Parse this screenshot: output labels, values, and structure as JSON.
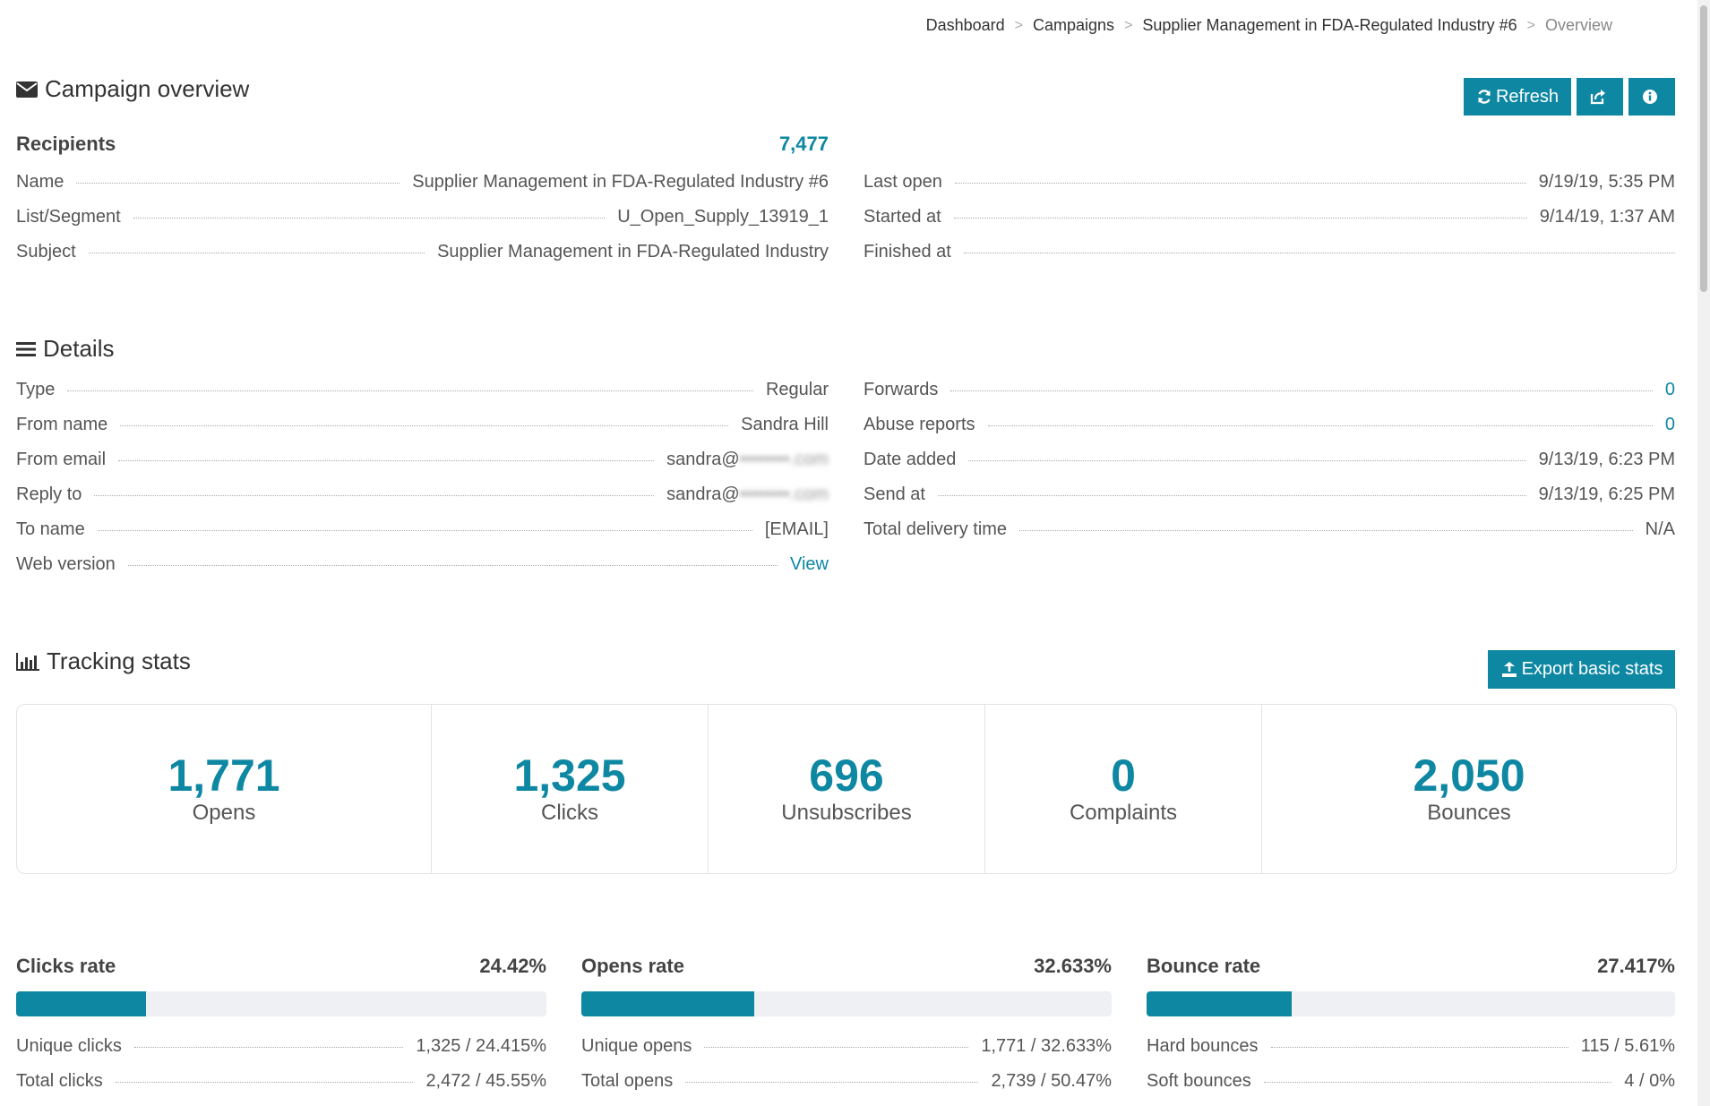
{
  "breadcrumb": [
    "Dashboard",
    "Campaigns",
    "Supplier Management in FDA-Regulated Industry #6",
    "Overview"
  ],
  "overview": {
    "title": "Campaign overview",
    "refresh_label": "Refresh",
    "recipients_label": "Recipients",
    "recipients_value": "7,477",
    "left": [
      {
        "label": "Name",
        "value": "Supplier Management in FDA-Regulated Industry #6"
      },
      {
        "label": "List/Segment",
        "value": "U_Open_Supply_13919_1"
      },
      {
        "label": "Subject",
        "value": "Supplier Management in FDA-Regulated Industry"
      }
    ],
    "right": [
      {
        "label": "Last open",
        "value": "9/19/19, 5:35 PM"
      },
      {
        "label": "Started at",
        "value": "9/14/19, 1:37 AM"
      },
      {
        "label": "Finished at",
        "value": ""
      }
    ]
  },
  "details": {
    "title": "Details",
    "left": [
      {
        "label": "Type",
        "value": "Regular"
      },
      {
        "label": "From name",
        "value": "Sandra Hill"
      },
      {
        "label": "From email",
        "value": "sandra@",
        "blurred": "••••••••.com"
      },
      {
        "label": "Reply to",
        "value": "sandra@",
        "blurred": "••••••••.com"
      },
      {
        "label": "To name",
        "value": "[EMAIL]"
      },
      {
        "label": "Web version",
        "value": "View"
      }
    ],
    "right": [
      {
        "label": "Forwards",
        "value": "0"
      },
      {
        "label": "Abuse reports",
        "value": "0"
      },
      {
        "label": "Date added",
        "value": "9/13/19, 6:23 PM"
      },
      {
        "label": "Send at",
        "value": "9/13/19, 6:25 PM"
      },
      {
        "label": "Total delivery time",
        "value": "N/A"
      }
    ]
  },
  "tracking": {
    "title": "Tracking stats",
    "export_label": "Export basic stats",
    "stats": [
      {
        "num": "1,771",
        "label": "Opens"
      },
      {
        "num": "1,325",
        "label": "Clicks"
      },
      {
        "num": "696",
        "label": "Unsubscribes"
      },
      {
        "num": "0",
        "label": "Complaints"
      },
      {
        "num": "2,050",
        "label": "Bounces"
      }
    ]
  },
  "rates": [
    {
      "title": "Clicks rate",
      "value": "24.42%",
      "fill": 0.2442,
      "rows": [
        {
          "label": "Unique clicks",
          "value": "1,325 / 24.415%"
        },
        {
          "label": "Total clicks",
          "value": "2,472 / 45.55%"
        }
      ]
    },
    {
      "title": "Opens rate",
      "value": "32.633%",
      "fill": 0.3263,
      "rows": [
        {
          "label": "Unique opens",
          "value": "1,771 / 32.633%"
        },
        {
          "label": "Total opens",
          "value": "2,739 / 50.47%"
        }
      ]
    },
    {
      "title": "Bounce rate",
      "value": "27.417%",
      "fill": 0.2742,
      "rows": [
        {
          "label": "Hard bounces",
          "value": "115 / 5.61%"
        },
        {
          "label": "Soft bounces",
          "value": "4 / 0%"
        }
      ]
    }
  ],
  "colors": {
    "accent": "#0e87a3"
  }
}
